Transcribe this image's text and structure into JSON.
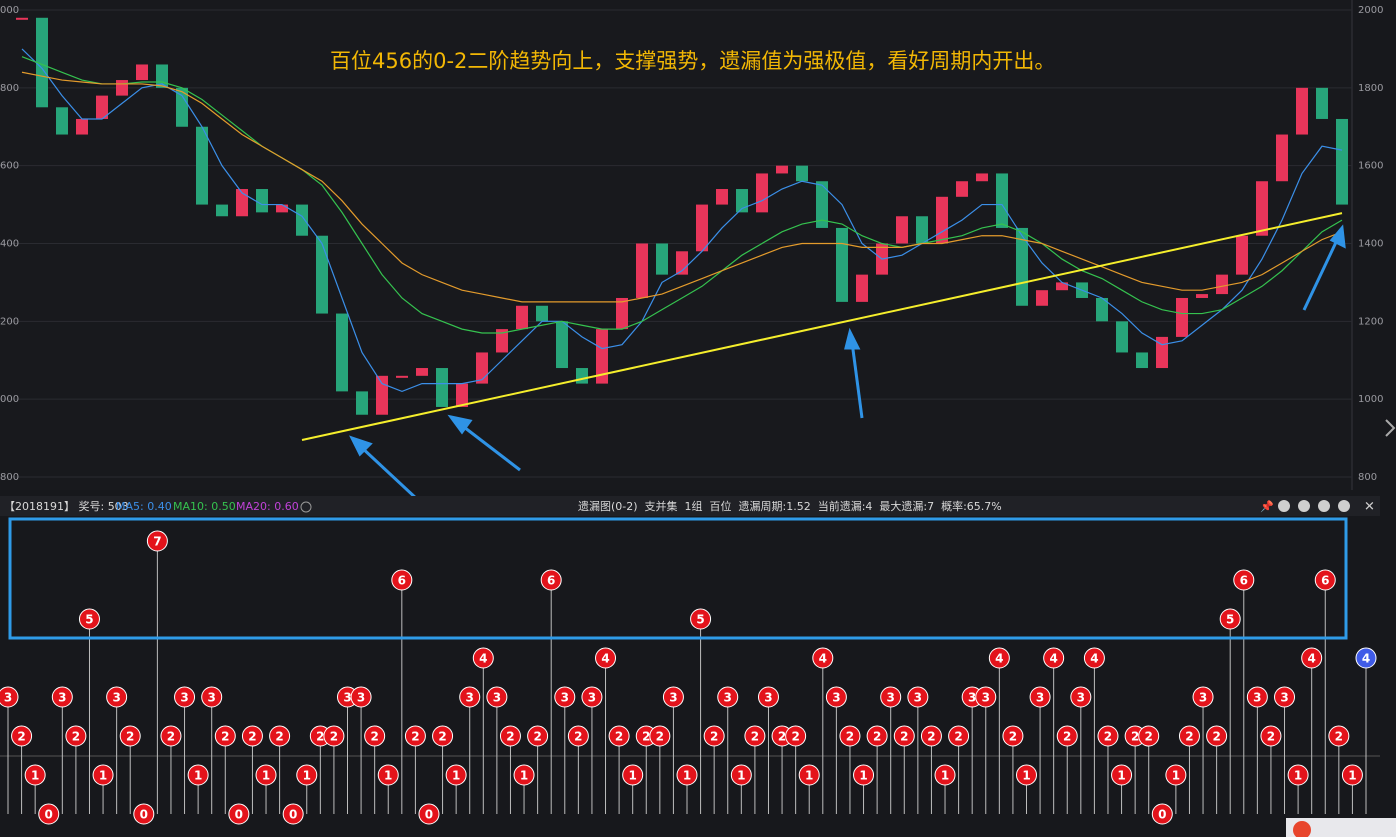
{
  "chart_data": [
    {
      "type": "candlestick",
      "annotation": "百位456的0-2二阶趋势向上，支撑强势，遗漏值为强极值，看好周期内开出。",
      "values": [
        1980,
        1750,
        1680,
        1720,
        1780,
        1820,
        1860,
        1800,
        1700,
        1500,
        1470,
        1540,
        1480,
        1500,
        1420,
        1220,
        1020,
        960,
        1060,
        1060,
        1080,
        980,
        1040,
        1120,
        1180,
        1240,
        1200,
        1080,
        1040,
        1180,
        1260,
        1400,
        1320,
        1380,
        1500,
        1540,
        1480,
        1580,
        1600,
        1560,
        1440,
        1250,
        1320,
        1400,
        1470,
        1400,
        1520,
        1560,
        1580,
        1440,
        1240,
        1280,
        1300,
        1260,
        1200,
        1120,
        1080,
        1160,
        1260,
        1270,
        1320,
        1420,
        1560,
        1680,
        1800,
        1720,
        1500
      ],
      "up_color": "#e8355a",
      "down_color": "#27a57a",
      "series": [
        {
          "color": "#3b8fe8",
          "values": [
            1900,
            1850,
            1780,
            1720,
            1720,
            1760,
            1800,
            1810,
            1780,
            1700,
            1600,
            1530,
            1500,
            1500,
            1470,
            1400,
            1260,
            1120,
            1040,
            1020,
            1040,
            1040,
            1040,
            1050,
            1100,
            1150,
            1200,
            1200,
            1160,
            1130,
            1140,
            1200,
            1300,
            1330,
            1380,
            1440,
            1490,
            1510,
            1540,
            1560,
            1550,
            1500,
            1400,
            1360,
            1370,
            1400,
            1430,
            1460,
            1500,
            1500,
            1420,
            1350,
            1300,
            1280,
            1260,
            1220,
            1170,
            1140,
            1150,
            1190,
            1230,
            1280,
            1360,
            1460,
            1580,
            1650,
            1640
          ]
        },
        {
          "color": "#35c24f",
          "values": [
            1880,
            1860,
            1840,
            1820,
            1810,
            1810,
            1815,
            1815,
            1800,
            1770,
            1730,
            1690,
            1650,
            1620,
            1590,
            1550,
            1480,
            1400,
            1320,
            1260,
            1220,
            1200,
            1180,
            1170,
            1170,
            1180,
            1190,
            1200,
            1190,
            1180,
            1180,
            1200,
            1230,
            1260,
            1290,
            1330,
            1370,
            1400,
            1430,
            1450,
            1460,
            1450,
            1420,
            1400,
            1390,
            1400,
            1410,
            1420,
            1440,
            1450,
            1430,
            1400,
            1360,
            1330,
            1310,
            1280,
            1250,
            1230,
            1220,
            1220,
            1230,
            1260,
            1290,
            1330,
            1380,
            1430,
            1460
          ]
        },
        {
          "color": "#e39b2c",
          "values": [
            1840,
            1830,
            1820,
            1815,
            1810,
            1810,
            1810,
            1805,
            1790,
            1760,
            1720,
            1680,
            1650,
            1620,
            1590,
            1560,
            1510,
            1450,
            1400,
            1350,
            1320,
            1300,
            1280,
            1270,
            1260,
            1250,
            1250,
            1250,
            1250,
            1250,
            1250,
            1260,
            1270,
            1290,
            1310,
            1330,
            1350,
            1370,
            1390,
            1400,
            1400,
            1400,
            1390,
            1390,
            1390,
            1400,
            1400,
            1410,
            1420,
            1420,
            1410,
            1400,
            1380,
            1360,
            1340,
            1320,
            1300,
            1290,
            1280,
            1280,
            1290,
            1300,
            1320,
            1350,
            1380,
            1410,
            1430
          ]
        }
      ],
      "trendline": {
        "x": [
          14,
          66
        ],
        "values": [
          895,
          1478
        ],
        "color": "#f5ee2c"
      },
      "ylim": [
        800,
        2000
      ],
      "yticks": [
        2000,
        1800,
        1600,
        1400,
        1200,
        1000,
        800
      ],
      "left_labels": [
        "000",
        "800",
        "600",
        "400",
        "200",
        "000",
        "800"
      ],
      "grid": true
    },
    {
      "type": "lollipop",
      "title": "遗漏图(0-2)",
      "values": [
        3,
        2,
        1,
        0,
        3,
        2,
        5,
        1,
        3,
        2,
        0,
        7,
        2,
        3,
        1,
        3,
        2,
        0,
        2,
        1,
        2,
        0,
        1,
        2,
        2,
        3,
        3,
        2,
        1,
        6,
        2,
        0,
        2,
        1,
        3,
        4,
        3,
        2,
        1,
        2,
        6,
        3,
        2,
        3,
        4,
        2,
        1,
        2,
        2,
        3,
        1,
        5,
        2,
        3,
        1,
        2,
        3,
        2,
        2,
        1,
        4,
        3,
        2,
        1,
        2,
        3,
        2,
        3,
        2,
        1,
        2,
        3,
        3,
        4,
        2,
        1,
        3,
        4,
        2,
        3,
        4,
        2,
        1,
        2,
        2,
        0,
        1,
        2,
        3,
        2,
        5,
        6,
        3,
        2,
        3,
        1,
        4,
        6,
        2,
        1,
        4
      ],
      "ylim": [
        0,
        7
      ],
      "color": "#e3131b",
      "current_color": "#3f5be8"
    }
  ],
  "info_bar": {
    "left": "【2018191】 奖号: 503",
    "ma5": "MA5: 0.40",
    "ma10": "MA10: 0.50",
    "ma20": "MA20: 0.60",
    "center": "遗漏图(0-2)  支并集  1组  百位  遗漏周期:1.52  当前遗漏:4  最大遗漏:7  概率:65.7%"
  }
}
